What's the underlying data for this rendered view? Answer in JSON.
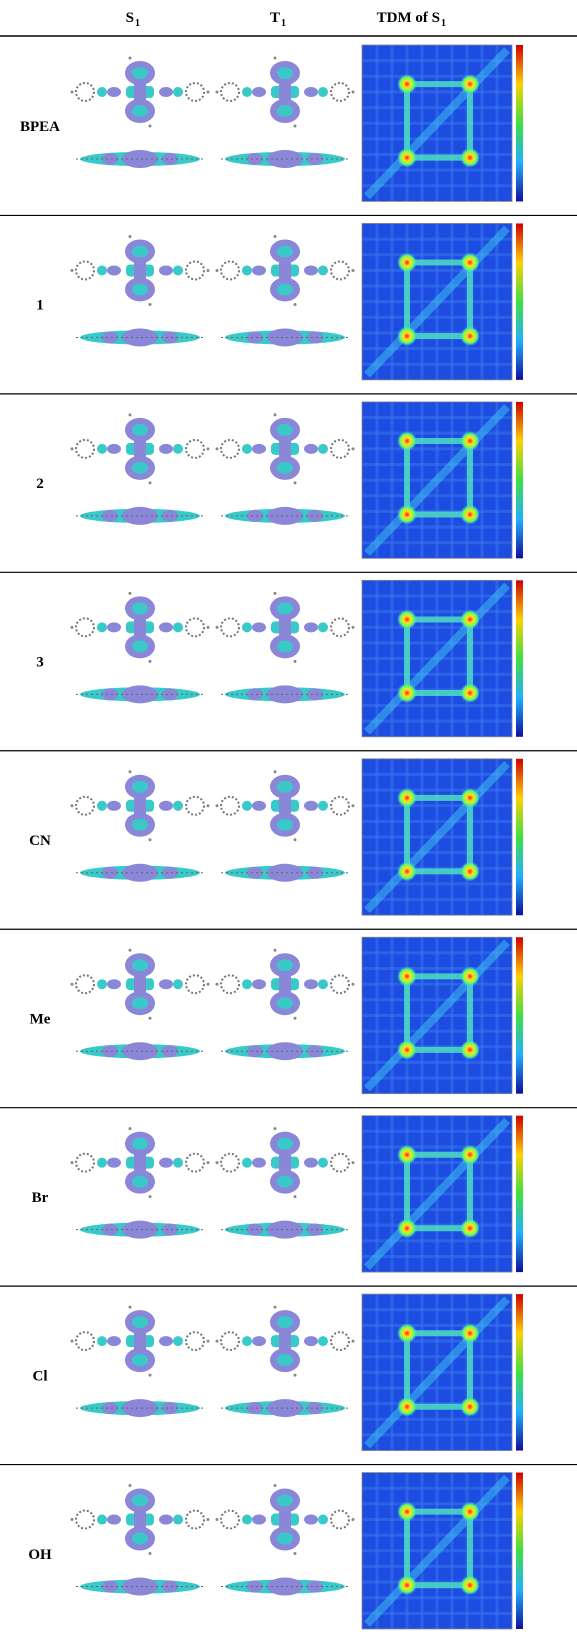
{
  "header": {
    "s1": {
      "symbol": "S",
      "subscript": "1"
    },
    "t1": {
      "symbol": "T",
      "subscript": "1"
    },
    "tdm": {
      "text": "TDM of S",
      "subscript": "1"
    }
  },
  "rows": [
    {
      "label": "BPEA"
    },
    {
      "label": "1"
    },
    {
      "label": "2"
    },
    {
      "label": "3"
    },
    {
      "label": "CN"
    },
    {
      "label": "Me"
    },
    {
      "label": "Br"
    },
    {
      "label": "Cl"
    },
    {
      "label": "OH"
    }
  ]
}
